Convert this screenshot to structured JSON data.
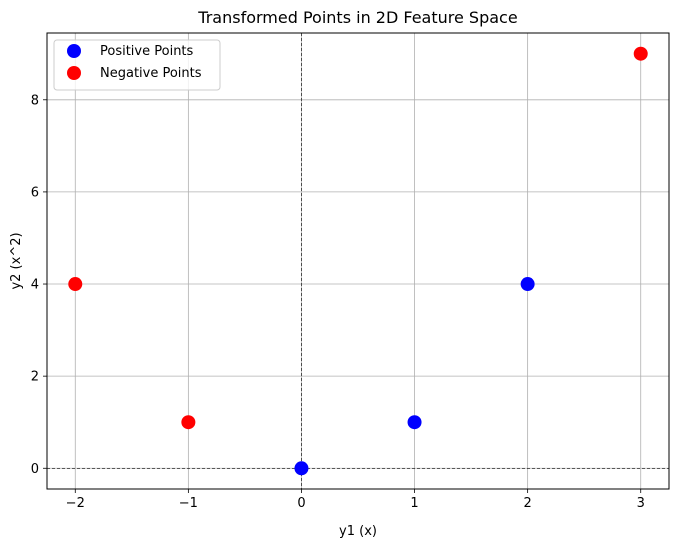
{
  "chart_data": {
    "type": "scatter",
    "title": "Transformed Points in 2D Feature Space",
    "xlabel": "y1 (x)",
    "ylabel": "y2 (x^2)",
    "xlim": [
      -2.25,
      3.25
    ],
    "ylim": [
      -0.45,
      9.45
    ],
    "xticks": [
      -2,
      -1,
      0,
      1,
      2,
      3
    ],
    "yticks": [
      0,
      2,
      4,
      6,
      8
    ],
    "xtick_labels": [
      "−2",
      "−1",
      "0",
      "1",
      "2",
      "3"
    ],
    "ytick_labels": [
      "0",
      "2",
      "4",
      "6",
      "8"
    ],
    "grid": true,
    "reference_lines": {
      "x": 0,
      "y": 0
    },
    "legend": {
      "position": "top-left",
      "entries": [
        {
          "label": "Positive Points",
          "color": "#0000ff"
        },
        {
          "label": "Negative Points",
          "color": "#ff0000"
        }
      ]
    },
    "series": [
      {
        "name": "Positive Points",
        "color": "#0000ff",
        "x": [
          0,
          1,
          2
        ],
        "y": [
          0,
          1,
          4
        ]
      },
      {
        "name": "Negative Points",
        "color": "#ff0000",
        "x": [
          -1,
          -2,
          3
        ],
        "y": [
          1,
          4,
          9
        ]
      }
    ]
  }
}
